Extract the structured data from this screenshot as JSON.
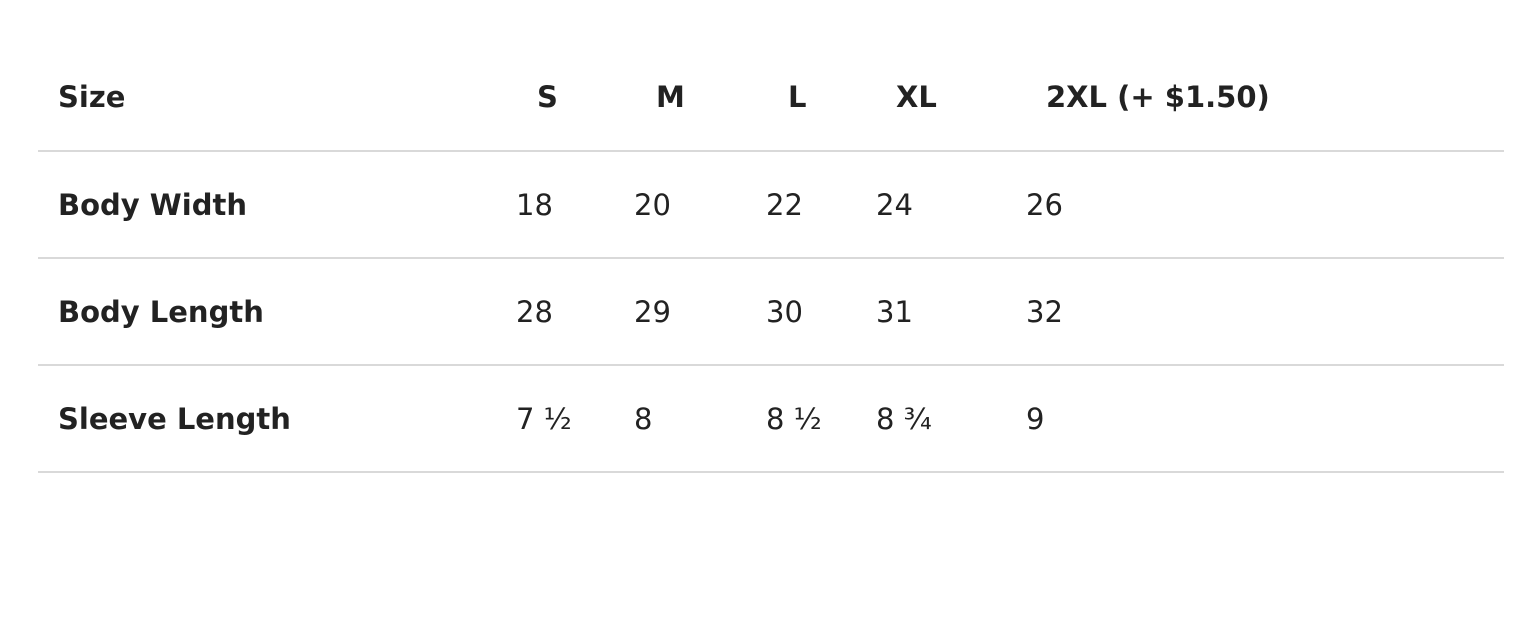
{
  "table": {
    "header": {
      "label": "Size",
      "sizes": [
        "S",
        "M",
        "L",
        "XL",
        "2XL (+ $1.50)"
      ]
    },
    "rows": [
      {
        "label": "Body Width",
        "values": [
          "18",
          "20",
          "22",
          "24",
          "26"
        ]
      },
      {
        "label": "Body Length",
        "values": [
          "28",
          "29",
          "30",
          "31",
          "32"
        ]
      },
      {
        "label": "Sleeve Length",
        "values": [
          "7 ½",
          "8",
          "8 ½",
          "8 ¾",
          "9"
        ]
      }
    ]
  }
}
